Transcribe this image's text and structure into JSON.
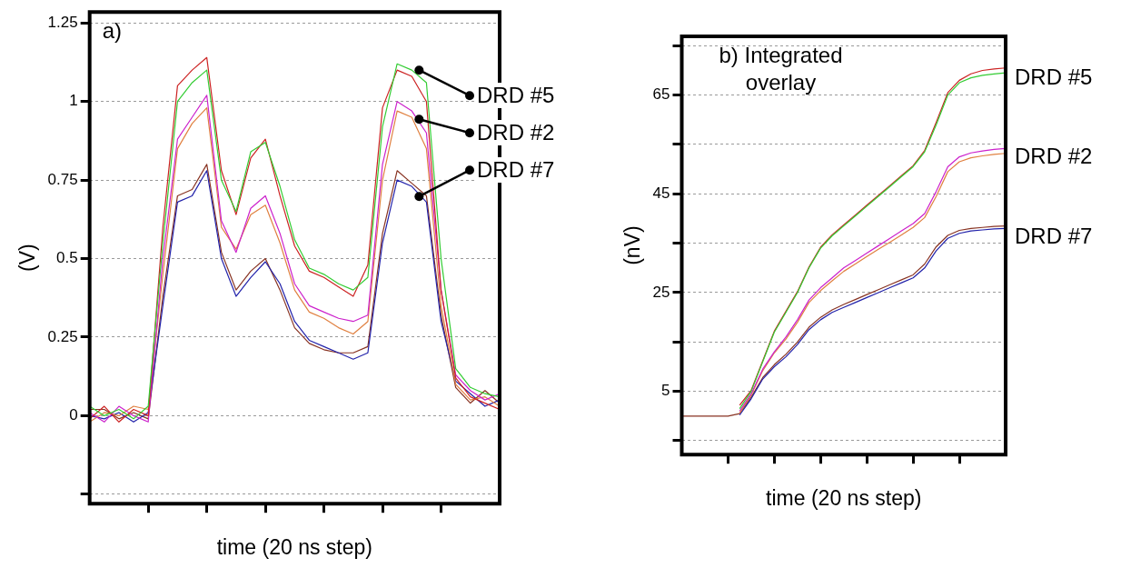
{
  "chart_data": [
    {
      "type": "line",
      "categories": [
        null,
        null,
        null,
        null,
        null,
        null,
        null,
        null,
        null,
        null,
        null,
        null,
        null,
        null,
        null,
        null,
        null,
        null,
        null,
        null,
        null,
        null,
        null,
        null,
        null,
        null,
        null,
        null,
        null
      ],
      "series": [
        {
          "color": "#33cc33",
          "values": [
            0.03,
            0,
            0.02,
            -0.01,
            0.03,
            0.55,
            1.0,
            1.06,
            1.1,
            0.75,
            0.65,
            0.84,
            0.87,
            0.73,
            0.56,
            0.47,
            0.45,
            0.42,
            0.4,
            0.44,
            0.92,
            1.12,
            1.1,
            1.06,
            0.5,
            0.15,
            0.09,
            0.07,
            0.06
          ]
        },
        {
          "color": "#cc2222",
          "values": [
            -0.01,
            0.03,
            -0.02,
            0.02,
            0,
            0.6,
            1.05,
            1.1,
            1.14,
            0.78,
            0.64,
            0.82,
            0.88,
            0.7,
            0.54,
            0.46,
            0.44,
            0.41,
            0.38,
            0.48,
            0.98,
            1.1,
            1.08,
            1.0,
            0.4,
            0.12,
            0.06,
            0.04,
            0.02
          ]
        },
        {
          "color": "#cc22cc",
          "values": [
            0.01,
            -0.02,
            0.03,
            0,
            -0.02,
            0.5,
            0.88,
            0.95,
            1.02,
            0.62,
            0.52,
            0.66,
            0.7,
            0.58,
            0.42,
            0.35,
            0.33,
            0.31,
            0.3,
            0.32,
            0.8,
            1.0,
            0.97,
            0.9,
            0.4,
            0.13,
            0.08,
            0.05,
            0.07
          ]
        },
        {
          "color": "#e08040",
          "values": [
            -0.02,
            0.01,
            0,
            0.03,
            0.02,
            0.45,
            0.85,
            0.93,
            0.98,
            0.6,
            0.53,
            0.64,
            0.67,
            0.55,
            0.4,
            0.33,
            0.31,
            0.28,
            0.26,
            0.3,
            0.75,
            0.97,
            0.95,
            0.85,
            0.35,
            0.1,
            0.05,
            0.06,
            0.03
          ]
        },
        {
          "color": "#2222aa",
          "values": [
            0,
            -0.01,
            0.01,
            -0.02,
            0.01,
            0.35,
            0.68,
            0.7,
            0.78,
            0.5,
            0.38,
            0.44,
            0.49,
            0.42,
            0.3,
            0.24,
            0.22,
            0.2,
            0.18,
            0.2,
            0.55,
            0.75,
            0.73,
            0.68,
            0.3,
            0.11,
            0.07,
            0.03,
            0.05
          ]
        },
        {
          "color": "#883322",
          "values": [
            0.02,
            0.02,
            -0.01,
            0.01,
            -0.01,
            0.38,
            0.7,
            0.72,
            0.8,
            0.52,
            0.4,
            0.46,
            0.5,
            0.4,
            0.28,
            0.23,
            0.21,
            0.2,
            0.2,
            0.22,
            0.58,
            0.78,
            0.74,
            0.7,
            0.32,
            0.09,
            0.04,
            0.08,
            0.04
          ]
        }
      ],
      "ylim": [
        -0.28,
        1.285
      ],
      "yticks": [
        {
          "value": -0.25,
          "label": null
        },
        0,
        0.25,
        0.5,
        0.75,
        1,
        1.25
      ],
      "ylabel": "(V)",
      "xlabel": "time (20 ns step)",
      "grid": "y",
      "legend": false,
      "marker": "none",
      "line_style": "solid",
      "annotations": [
        "a)",
        "DRD #5",
        "DRD #2",
        "DRD #7"
      ]
    },
    {
      "type": "line",
      "categories": [
        null,
        null,
        null,
        null,
        null,
        null,
        null,
        null,
        null,
        null,
        null,
        null,
        null,
        null,
        null,
        null,
        null,
        null,
        null,
        null,
        null,
        null,
        null,
        null,
        null,
        null,
        null,
        null,
        null
      ],
      "series": [
        {
          "color": "#33cc33",
          "values": [
            null,
            null,
            null,
            null,
            null,
            1.5,
            5,
            11,
            17,
            21,
            25,
            30,
            34,
            36.5,
            38.5,
            40.5,
            42.5,
            44.5,
            46.5,
            48.5,
            50.5,
            53.5,
            59,
            65,
            67.5,
            68.5,
            69,
            69.3,
            69.5
          ]
        },
        {
          "color": "#cc2222",
          "values": [
            null,
            null,
            null,
            null,
            null,
            2.2,
            5.2,
            11.2,
            17.2,
            21.2,
            25.2,
            30.2,
            34.2,
            36.7,
            38.7,
            40.7,
            42.7,
            44.7,
            46.7,
            48.7,
            50.7,
            53.8,
            59.5,
            65.5,
            68,
            69.3,
            70,
            70.3,
            70.5
          ]
        },
        {
          "color": "#cc22cc",
          "values": [
            null,
            null,
            null,
            null,
            null,
            1.0,
            4.5,
            9.5,
            13,
            16,
            19.5,
            23.5,
            26,
            28,
            30,
            31.5,
            33,
            34.5,
            36,
            37.5,
            39,
            41,
            45.5,
            50.5,
            52.5,
            53.3,
            53.7,
            54,
            54.2
          ]
        },
        {
          "color": "#e08040",
          "values": [
            null,
            null,
            null,
            null,
            null,
            0.6,
            4.3,
            9.2,
            12.8,
            15.6,
            19,
            23,
            25.4,
            27.4,
            29.3,
            30.8,
            32.3,
            33.8,
            35.2,
            36.7,
            38.2,
            40.2,
            44.5,
            49.5,
            51.5,
            52.3,
            52.7,
            53,
            53.2
          ]
        },
        {
          "color": "#2222aa",
          "values": [
            null,
            null,
            null,
            null,
            null,
            0.2,
            3.5,
            7.5,
            10,
            12,
            14.5,
            17.5,
            19.5,
            21,
            22,
            23,
            24,
            25,
            26,
            27,
            28,
            30,
            33.5,
            36,
            37,
            37.5,
            37.7,
            37.9,
            38
          ]
        },
        {
          "color": "#883322",
          "values": [
            0,
            0,
            0,
            0,
            0,
            0.5,
            3.8,
            7.8,
            10.4,
            12.5,
            15,
            18,
            20,
            21.5,
            22.6,
            23.6,
            24.6,
            25.6,
            26.6,
            27.6,
            28.6,
            30.8,
            34.3,
            36.6,
            37.6,
            38,
            38.2,
            38.4,
            38.5
          ]
        }
      ],
      "ylim": [
        -7.8,
        76.9
      ],
      "yticks": [
        {
          "value": -5,
          "label": null
        },
        5,
        {
          "value": 15,
          "label": null
        },
        25,
        {
          "value": 35,
          "label": null
        },
        45,
        {
          "value": 55,
          "label": null
        },
        65,
        {
          "value": 75,
          "label": null
        }
      ],
      "ylabel": "(nV)",
      "xlabel": "time (20 ns step)",
      "grid": "y",
      "legend": false,
      "marker": "none",
      "line_style": "solid",
      "annotations": [
        "b) Integrated overlay",
        "DRD #5",
        "DRD #2",
        "DRD #7"
      ]
    }
  ]
}
